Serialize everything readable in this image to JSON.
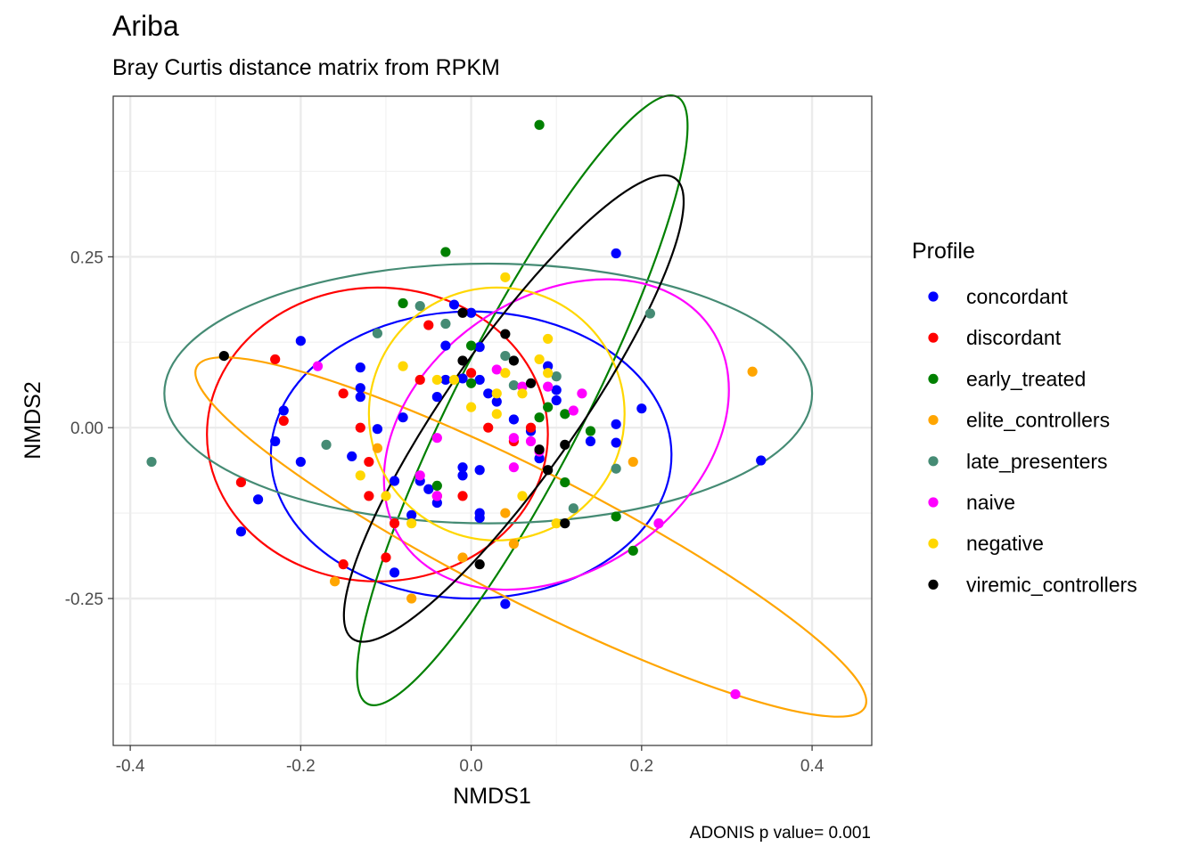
{
  "chart_data": {
    "type": "scatter",
    "title": "Ariba",
    "subtitle": "Bray Curtis distance matrix from RPKM",
    "xlabel": "NMDS1",
    "ylabel": "NMDS2",
    "caption": "ADONIS p value= 0.001",
    "xlim": [
      -0.42,
      0.47
    ],
    "ylim": [
      -0.465,
      0.485
    ],
    "x_ticks": [
      -0.4,
      -0.2,
      0.0,
      0.2,
      0.4
    ],
    "x_tick_labels": [
      "-0.4",
      "-0.2",
      "0.0",
      "0.2",
      "0.4"
    ],
    "y_ticks": [
      -0.25,
      0.0,
      0.25
    ],
    "y_tick_labels": [
      "-0.25",
      "0.00",
      "0.25"
    ],
    "grid": true,
    "legend": {
      "title": "Profile",
      "position": "right"
    },
    "series": [
      {
        "name": "concordant",
        "color": "#0000FF",
        "ellipse": {
          "cx": 0.0,
          "cy": -0.04,
          "rx": 0.235,
          "ry": 0.21,
          "angle": 0
        },
        "points": [
          [
            0.17,
            0.255
          ],
          [
            -0.2,
            0.127
          ],
          [
            -0.13,
            0.088
          ],
          [
            -0.13,
            0.058
          ],
          [
            -0.13,
            0.045
          ],
          [
            -0.22,
            0.025
          ],
          [
            -0.23,
            -0.02
          ],
          [
            -0.2,
            -0.05
          ],
          [
            -0.14,
            -0.042
          ],
          [
            -0.25,
            -0.105
          ],
          [
            -0.27,
            -0.152
          ],
          [
            -0.11,
            -0.002
          ],
          [
            -0.08,
            0.015
          ],
          [
            -0.09,
            -0.078
          ],
          [
            -0.06,
            -0.078
          ],
          [
            -0.05,
            -0.09
          ],
          [
            -0.04,
            0.045
          ],
          [
            -0.04,
            -0.11
          ],
          [
            -0.07,
            -0.128
          ],
          [
            -0.03,
            0.07
          ],
          [
            -0.02,
            0.18
          ],
          [
            0.0,
            0.168
          ],
          [
            0.01,
            0.118
          ],
          [
            0.01,
            0.07
          ],
          [
            0.02,
            0.05
          ],
          [
            -0.03,
            0.12
          ],
          [
            -0.01,
            0.072
          ],
          [
            0.03,
            0.038
          ],
          [
            0.05,
            0.012
          ],
          [
            0.08,
            -0.045
          ],
          [
            0.09,
            0.09
          ],
          [
            0.1,
            0.055
          ],
          [
            0.1,
            0.04
          ],
          [
            0.14,
            -0.02
          ],
          [
            0.17,
            0.005
          ],
          [
            0.17,
            -0.022
          ],
          [
            0.2,
            0.028
          ],
          [
            0.34,
            -0.048
          ],
          [
            -0.09,
            -0.212
          ],
          [
            0.04,
            -0.258
          ],
          [
            0.01,
            -0.125
          ],
          [
            -0.01,
            -0.058
          ],
          [
            -0.01,
            -0.07
          ],
          [
            0.01,
            -0.062
          ],
          [
            0.07,
            -0.005
          ],
          [
            0.01,
            -0.132
          ]
        ]
      },
      {
        "name": "discordant",
        "color": "#FF0000",
        "ellipse": {
          "cx": -0.11,
          "cy": -0.01,
          "rx": 0.2,
          "ry": 0.215,
          "angle": 0
        },
        "points": [
          [
            -0.23,
            0.1
          ],
          [
            -0.15,
            0.05
          ],
          [
            -0.22,
            0.01
          ],
          [
            -0.27,
            -0.08
          ],
          [
            -0.13,
            0.0
          ],
          [
            -0.12,
            -0.05
          ],
          [
            -0.12,
            -0.1
          ],
          [
            -0.09,
            -0.14
          ],
          [
            -0.1,
            -0.19
          ],
          [
            -0.15,
            -0.2
          ],
          [
            -0.04,
            -0.1
          ],
          [
            -0.01,
            -0.1
          ],
          [
            -0.05,
            0.15
          ],
          [
            -0.06,
            0.07
          ],
          [
            0.0,
            0.08
          ],
          [
            0.02,
            0.0
          ],
          [
            0.05,
            -0.02
          ],
          [
            0.07,
            0.0
          ]
        ]
      },
      {
        "name": "early_treated",
        "color": "#008000",
        "ellipse": {
          "cx": 0.06,
          "cy": 0.04,
          "rx": 0.4,
          "ry": 0.095,
          "angle": 63
        },
        "points": [
          [
            0.08,
            0.443
          ],
          [
            -0.03,
            0.257
          ],
          [
            -0.08,
            0.182
          ],
          [
            0.0,
            0.12
          ],
          [
            0.0,
            0.065
          ],
          [
            0.08,
            0.015
          ],
          [
            0.09,
            0.03
          ],
          [
            0.11,
            0.02
          ],
          [
            0.14,
            -0.005
          ],
          [
            0.11,
            -0.08
          ],
          [
            0.17,
            -0.13
          ],
          [
            0.19,
            -0.18
          ],
          [
            -0.04,
            -0.085
          ]
        ]
      },
      {
        "name": "elite_controllers",
        "color": "#FFA500",
        "ellipse": {
          "cx": 0.07,
          "cy": -0.16,
          "rx": 0.44,
          "ry": 0.095,
          "angle": -27
        },
        "points": [
          [
            0.33,
            0.082
          ],
          [
            0.19,
            -0.05
          ],
          [
            -0.11,
            -0.03
          ],
          [
            0.04,
            -0.125
          ],
          [
            -0.16,
            -0.225
          ],
          [
            -0.07,
            -0.25
          ],
          [
            -0.01,
            -0.19
          ],
          [
            0.05,
            -0.17
          ]
        ]
      },
      {
        "name": "late_presenters",
        "color": "#458B74",
        "ellipse": {
          "cx": 0.02,
          "cy": 0.05,
          "rx": 0.38,
          "ry": 0.19,
          "angle": 0
        },
        "points": [
          [
            0.21,
            0.167
          ],
          [
            -0.375,
            -0.05
          ],
          [
            -0.17,
            -0.025
          ],
          [
            -0.11,
            0.138
          ],
          [
            -0.06,
            0.178
          ],
          [
            -0.03,
            0.152
          ],
          [
            0.04,
            0.105
          ],
          [
            0.1,
            0.075
          ],
          [
            0.05,
            0.062
          ],
          [
            0.17,
            -0.06
          ],
          [
            0.12,
            -0.118
          ]
        ]
      },
      {
        "name": "naive",
        "color": "#FF00FF",
        "ellipse": {
          "cx": 0.1,
          "cy": -0.01,
          "rx": 0.22,
          "ry": 0.2,
          "angle": 35
        },
        "points": [
          [
            -0.18,
            0.09
          ],
          [
            -0.04,
            -0.015
          ],
          [
            -0.06,
            -0.07
          ],
          [
            -0.04,
            -0.1
          ],
          [
            0.03,
            0.085
          ],
          [
            0.05,
            -0.015
          ],
          [
            0.06,
            0.06
          ],
          [
            0.05,
            -0.058
          ],
          [
            0.07,
            -0.02
          ],
          [
            0.08,
            -0.035
          ],
          [
            0.09,
            0.06
          ],
          [
            0.12,
            0.025
          ],
          [
            0.13,
            0.05
          ],
          [
            0.22,
            -0.14
          ],
          [
            0.31,
            -0.39
          ]
        ]
      },
      {
        "name": "negative",
        "color": "#FFD700",
        "ellipse": {
          "cx": 0.03,
          "cy": 0.02,
          "rx": 0.15,
          "ry": 0.185,
          "angle": 0
        },
        "points": [
          [
            0.04,
            0.22
          ],
          [
            0.09,
            0.13
          ],
          [
            -0.08,
            0.09
          ],
          [
            -0.04,
            0.07
          ],
          [
            -0.02,
            0.07
          ],
          [
            0.04,
            0.08
          ],
          [
            0.08,
            0.1
          ],
          [
            0.09,
            0.08
          ],
          [
            -0.1,
            -0.1
          ],
          [
            -0.13,
            -0.07
          ],
          [
            -0.07,
            -0.14
          ],
          [
            0.0,
            0.03
          ],
          [
            0.03,
            0.05
          ],
          [
            0.03,
            0.02
          ],
          [
            0.06,
            0.05
          ],
          [
            0.1,
            -0.14
          ],
          [
            0.06,
            -0.1
          ]
        ]
      },
      {
        "name": "viremic_controllers",
        "color": "#000000",
        "ellipse": {
          "cx": 0.05,
          "cy": 0.028,
          "rx": 0.33,
          "ry": 0.095,
          "angle": 55
        },
        "points": [
          [
            -0.29,
            0.105
          ],
          [
            -0.01,
            0.168
          ],
          [
            0.04,
            0.137
          ],
          [
            -0.01,
            0.098
          ],
          [
            0.05,
            0.098
          ],
          [
            0.07,
            0.065
          ],
          [
            0.08,
            -0.032
          ],
          [
            0.09,
            -0.062
          ],
          [
            0.11,
            -0.025
          ],
          [
            0.11,
            -0.14
          ],
          [
            0.01,
            -0.2
          ]
        ]
      }
    ]
  }
}
